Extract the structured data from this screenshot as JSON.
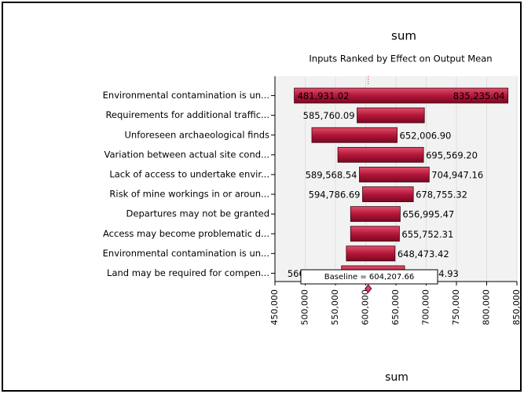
{
  "chart_data": {
    "type": "tornado",
    "title": "sum",
    "subtitle": "Inputs Ranked by Effect on Output Mean",
    "x_label": "sum",
    "categories": [
      "Environmental contamination is un...",
      "Requirements for additional traffic...",
      "Unforeseen archaeological finds",
      "Variation between actual site cond...",
      "Lack of access to undertake envir...",
      "Risk of mine workings in or aroun...",
      "Departures may not be granted",
      "Access may become problematic d...",
      "Environmental contamination is un...",
      "Land may be required for compen..."
    ],
    "series": [
      {
        "name": "low",
        "color": "#b3163a",
        "values": [
          481931.02,
          585760.09,
          511000,
          554000,
          589568.54,
          594786.69,
          575000,
          575000,
          568000,
          560000
        ],
        "value_labels": [
          "481,931.02",
          "585,760.09",
          null,
          null,
          "589,568.54",
          "594,786.69",
          null,
          null,
          null,
          "560,000.00"
        ]
      },
      {
        "name": "high",
        "color": "#b3163a",
        "values": [
          835235.04,
          697000,
          652006.9,
          695569.2,
          704947.16,
          678755.32,
          656995.47,
          655752.31,
          648473.42,
          664344.93
        ],
        "value_labels": [
          "835,235.04",
          null,
          "652,006.90",
          "695,569.20",
          "704,947.16",
          "678,755.32",
          "656,995.47",
          "655,752.31",
          "648,473.42",
          "664,344.93"
        ]
      }
    ],
    "baseline": {
      "value": 604207.66,
      "label": "Baseline = 604,207.66"
    },
    "xlim": [
      450000,
      850000
    ],
    "xticks": [
      {
        "value": 450000,
        "label": "450,000"
      },
      {
        "value": 500000,
        "label": "500,000"
      },
      {
        "value": 550000,
        "label": "550,000"
      },
      {
        "value": 600000,
        "label": "600,000"
      },
      {
        "value": 650000,
        "label": "650,000"
      },
      {
        "value": 700000,
        "label": "700,000"
      },
      {
        "value": 750000,
        "label": "750,000"
      },
      {
        "value": 800000,
        "label": "800,000"
      },
      {
        "value": 850000,
        "label": "850,000"
      }
    ],
    "grid": true
  }
}
